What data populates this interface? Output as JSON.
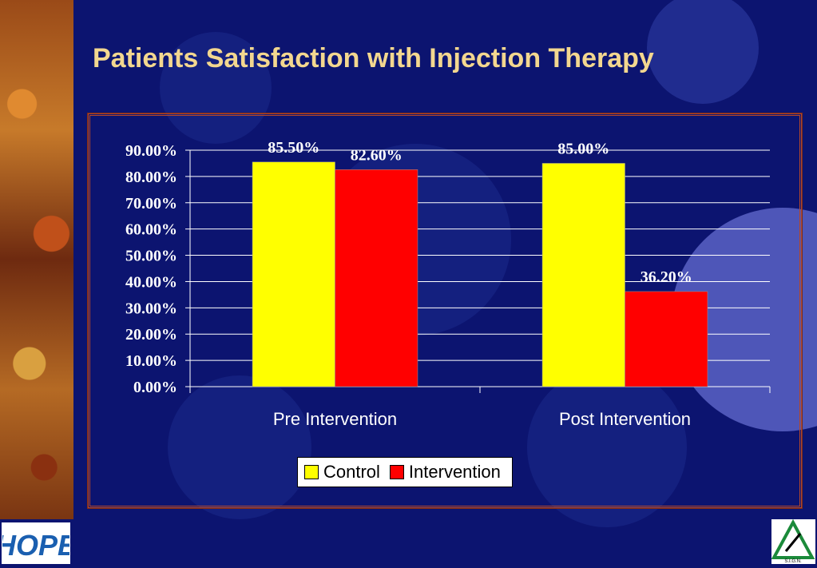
{
  "slide": {
    "title": "Patients Satisfaction with Injection Therapy",
    "logos": {
      "left": "HOPE",
      "right": "S.I.G.N."
    }
  },
  "chart_data": {
    "type": "bar",
    "categories": [
      "Pre Intervention",
      "Post Intervention"
    ],
    "series": [
      {
        "name": "Control",
        "values": [
          85.5,
          85.0
        ],
        "labels": [
          "85.50%",
          "85.00%"
        ],
        "color": "#ffff00"
      },
      {
        "name": "Intervention",
        "values": [
          82.6,
          36.2
        ],
        "labels": [
          "82.60%",
          "36.20%"
        ],
        "color": "#ff0000"
      }
    ],
    "yticks": [
      "0.00%",
      "10.00%",
      "20.00%",
      "30.00%",
      "40.00%",
      "50.00%",
      "60.00%",
      "70.00%",
      "80.00%",
      "90.00%"
    ],
    "ylim": [
      0,
      90
    ],
    "grid": true,
    "legend_position": "bottom",
    "title": "",
    "xlabel": "",
    "ylabel": ""
  }
}
